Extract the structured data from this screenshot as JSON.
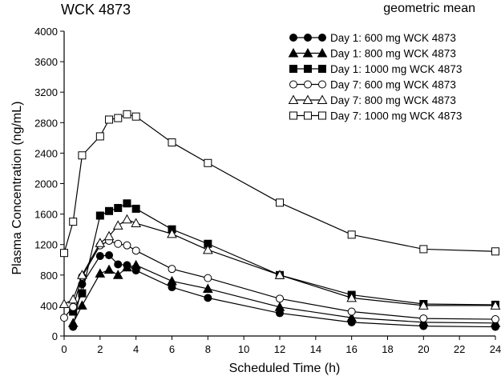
{
  "chart_data": {
    "type": "line",
    "title": "WCK 4873",
    "subtitle": "geometric mean",
    "xlabel": "Scheduled Time (h)",
    "ylabel": "Plasma Concentration (ng/mL)",
    "xlim": [
      0,
      24
    ],
    "ylim": [
      0,
      4000
    ],
    "xticks": [
      0,
      2,
      4,
      6,
      8,
      10,
      12,
      14,
      16,
      18,
      20,
      22,
      24
    ],
    "yticks": [
      0,
      400,
      800,
      1200,
      1600,
      2000,
      2400,
      2800,
      3200,
      3600,
      4000
    ],
    "legend_position": "top-right",
    "grid": false,
    "x": [
      0,
      0.5,
      1,
      2,
      2.5,
      3,
      3.5,
      4,
      6,
      8,
      12,
      16,
      20,
      24
    ],
    "series": [
      {
        "name": "Day 1: 600 mg WCK 4873",
        "marker": "circle-filled",
        "values": [
          null,
          120,
          680,
          1050,
          1060,
          940,
          930,
          860,
          640,
          500,
          300,
          180,
          130,
          120
        ]
      },
      {
        "name": "Day 1: 800 mg WCK 4873",
        "marker": "triangle-filled",
        "values": [
          null,
          170,
          400,
          820,
          870,
          800,
          900,
          930,
          720,
          620,
          380,
          240,
          180,
          170
        ]
      },
      {
        "name": "Day 1: 1000 mg WCK 4873",
        "marker": "square-filled",
        "values": [
          null,
          320,
          560,
          1580,
          1640,
          1680,
          1740,
          1670,
          1400,
          1210,
          800,
          540,
          420,
          410
        ]
      },
      {
        "name": "Day 7: 600 mg WCK 4873",
        "marker": "circle-open",
        "values": [
          240,
          380,
          780,
          1190,
          1250,
          1210,
          1190,
          1120,
          880,
          760,
          490,
          320,
          230,
          220
        ]
      },
      {
        "name": "Day 7: 800 mg WCK 4873",
        "marker": "triangle-open",
        "values": [
          420,
          480,
          800,
          1220,
          1310,
          1450,
          1530,
          1480,
          1340,
          1130,
          800,
          500,
          400,
          400
        ]
      },
      {
        "name": "Day 7: 1000 mg WCK 4873",
        "marker": "square-open",
        "values": [
          1090,
          1500,
          2370,
          2620,
          2840,
          2860,
          2910,
          2880,
          2540,
          2270,
          1750,
          1330,
          1140,
          1110
        ]
      }
    ]
  }
}
